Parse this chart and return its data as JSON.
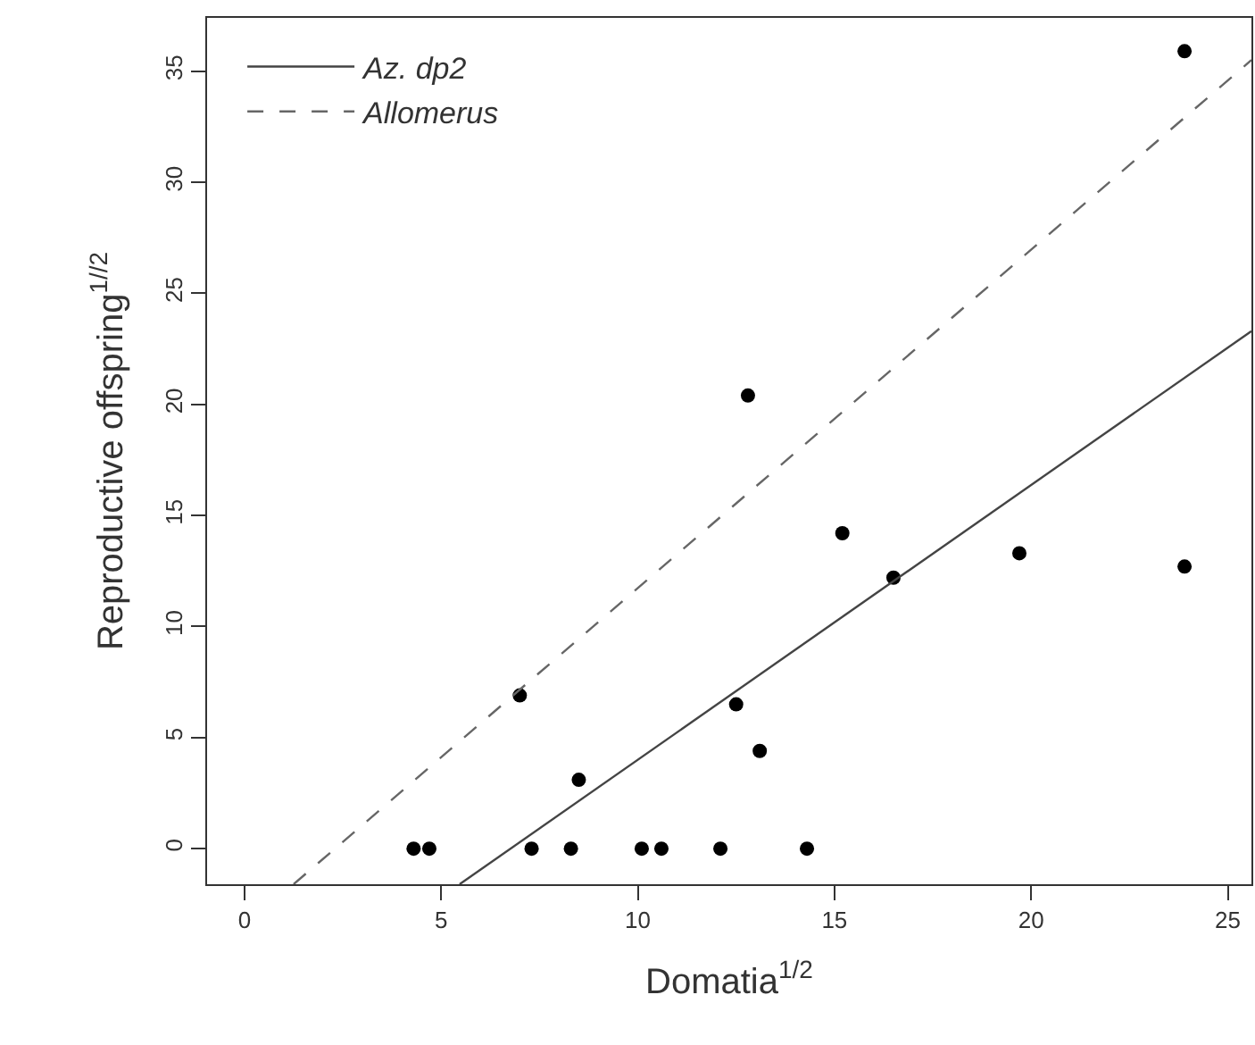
{
  "chart_data": {
    "type": "scatter",
    "xlabel": "Domatia$^{1/2}$",
    "ylabel": "Reproductive offspring$^{1//2}$",
    "xlim": [
      -0.95,
      25.6
    ],
    "ylim": [
      -1.6,
      37.4
    ],
    "xticks": [
      0,
      5,
      10,
      15,
      20,
      25
    ],
    "yticks": [
      0,
      5,
      10,
      15,
      20,
      25,
      30,
      35
    ],
    "grid": false,
    "legend": "top left",
    "series": [
      {
        "color": "#000000",
        "marker": "circle",
        "x": [
          4.3,
          4.7,
          7.3,
          8.3,
          10.1,
          10.6,
          12.1,
          14.3,
          7.0,
          8.5,
          12.5,
          13.1,
          12.8,
          15.2,
          16.5,
          19.7,
          23.9,
          23.9
        ],
        "values": [
          0,
          0,
          0,
          0,
          0,
          0,
          0,
          0,
          6.9,
          3.1,
          6.5,
          4.4,
          20.4,
          14.2,
          12.2,
          13.3,
          12.7,
          35.9
        ]
      },
      {
        "type": "line",
        "name": "Az. dp2",
        "color": "#444444",
        "marker": "none",
        "line_style": "solid",
        "x": [
          5.47,
          25.6
        ],
        "values": [
          -1.6,
          23.3
        ]
      },
      {
        "type": "line",
        "name": "Allomerus",
        "color": "#666666",
        "marker": "none",
        "line_style": "dashed",
        "x": [
          1.25,
          25.6
        ],
        "values": [
          -1.6,
          35.5
        ]
      }
    ]
  }
}
